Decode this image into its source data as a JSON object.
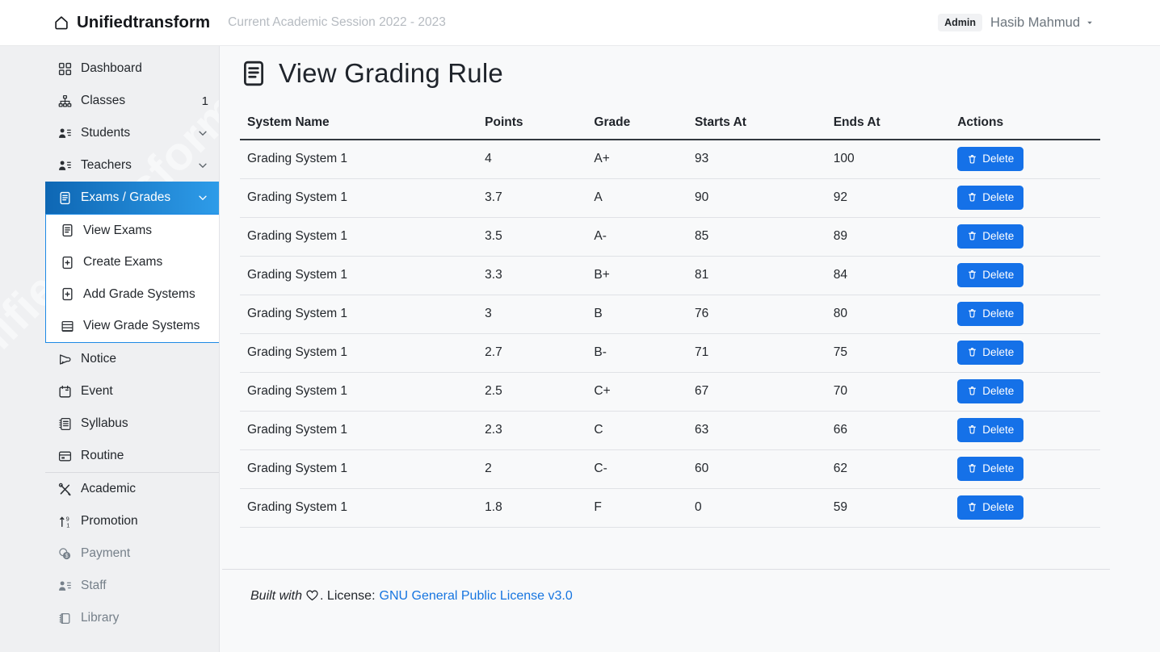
{
  "navbar": {
    "brand": "Unifiedtransform",
    "brand_icon": "home-icon",
    "session_label": "Current Academic Session 2022 - 2023",
    "role_badge": "Admin",
    "user_name": "Hasib Mahmud",
    "caret_icon": "caret-down-icon"
  },
  "sidebar": {
    "watermark": "Unifiedtransform",
    "items": [
      {
        "key": "dashboard",
        "label": "Dashboard",
        "icon": "grid-icon"
      },
      {
        "key": "classes",
        "label": "Classes",
        "icon": "sitemap-icon",
        "badge": "1"
      },
      {
        "key": "students",
        "label": "Students",
        "icon": "people-icon",
        "chevron": true
      },
      {
        "key": "teachers",
        "label": "Teachers",
        "icon": "people-icon",
        "chevron": true
      },
      {
        "key": "exams-grades",
        "label": "Exams / Grades",
        "icon": "file-text-icon",
        "chevron": true,
        "active": true,
        "children": [
          {
            "key": "view-exams",
            "label": "View Exams",
            "icon": "file-text-icon"
          },
          {
            "key": "create-exams",
            "label": "Create Exams",
            "icon": "file-plus-icon"
          },
          {
            "key": "add-grade-systems",
            "label": "Add Grade Systems",
            "icon": "file-plus-icon"
          },
          {
            "key": "view-grade-systems",
            "label": "View Grade Systems",
            "icon": "table-icon"
          }
        ]
      },
      {
        "key": "notice",
        "label": "Notice",
        "icon": "megaphone-icon"
      },
      {
        "key": "event",
        "label": "Event",
        "icon": "calendar-icon"
      },
      {
        "key": "syllabus",
        "label": "Syllabus",
        "icon": "journal-text-icon"
      },
      {
        "key": "routine",
        "label": "Routine",
        "icon": "card-list-icon",
        "divider_after": true
      },
      {
        "key": "academic",
        "label": "Academic",
        "icon": "tools-icon"
      },
      {
        "key": "promotion",
        "label": "Promotion",
        "icon": "sort-numeric-up-icon"
      },
      {
        "key": "payment",
        "label": "Payment",
        "icon": "coins-icon",
        "muted": true
      },
      {
        "key": "staff",
        "label": "Staff",
        "icon": "people-icon",
        "muted": true
      },
      {
        "key": "library",
        "label": "Library",
        "icon": "book-icon",
        "muted": true
      }
    ]
  },
  "page": {
    "title": "View Grading Rule",
    "title_icon": "file-text-icon"
  },
  "table": {
    "columns": [
      "System Name",
      "Points",
      "Grade",
      "Starts At",
      "Ends At",
      "Actions"
    ],
    "column_widths": [
      "27.4%",
      "12.6%",
      "11.6%",
      "16%",
      "14.3%",
      "17.3%"
    ],
    "delete_label": "Delete",
    "delete_icon": "trash-icon",
    "rows": [
      {
        "system": "Grading System 1",
        "points": "4",
        "grade": "A+",
        "starts_at": "93",
        "ends_at": "100"
      },
      {
        "system": "Grading System 1",
        "points": "3.7",
        "grade": "A",
        "starts_at": "90",
        "ends_at": "92"
      },
      {
        "system": "Grading System 1",
        "points": "3.5",
        "grade": "A-",
        "starts_at": "85",
        "ends_at": "89"
      },
      {
        "system": "Grading System 1",
        "points": "3.3",
        "grade": "B+",
        "starts_at": "81",
        "ends_at": "84"
      },
      {
        "system": "Grading System 1",
        "points": "3",
        "grade": "B",
        "starts_at": "76",
        "ends_at": "80"
      },
      {
        "system": "Grading System 1",
        "points": "2.7",
        "grade": "B-",
        "starts_at": "71",
        "ends_at": "75"
      },
      {
        "system": "Grading System 1",
        "points": "2.5",
        "grade": "C+",
        "starts_at": "67",
        "ends_at": "70"
      },
      {
        "system": "Grading System 1",
        "points": "2.3",
        "grade": "C",
        "starts_at": "63",
        "ends_at": "66"
      },
      {
        "system": "Grading System 1",
        "points": "2",
        "grade": "C-",
        "starts_at": "60",
        "ends_at": "62"
      },
      {
        "system": "Grading System 1",
        "points": "1.8",
        "grade": "F",
        "starts_at": "0",
        "ends_at": "59"
      }
    ]
  },
  "footer": {
    "built_with": "Built with",
    "heart_icon": "heart-icon",
    "license_prefix": ". License:",
    "license_link": "GNU General Public License v3.0"
  },
  "colors": {
    "accent_gradient_start": "#0e67b4",
    "accent_gradient_end": "#2e9ce9",
    "delete_button": "#1571e8",
    "link": "#1675e0",
    "content_background": "#f8f9fa",
    "sidebar_background": "#eff0f2"
  }
}
